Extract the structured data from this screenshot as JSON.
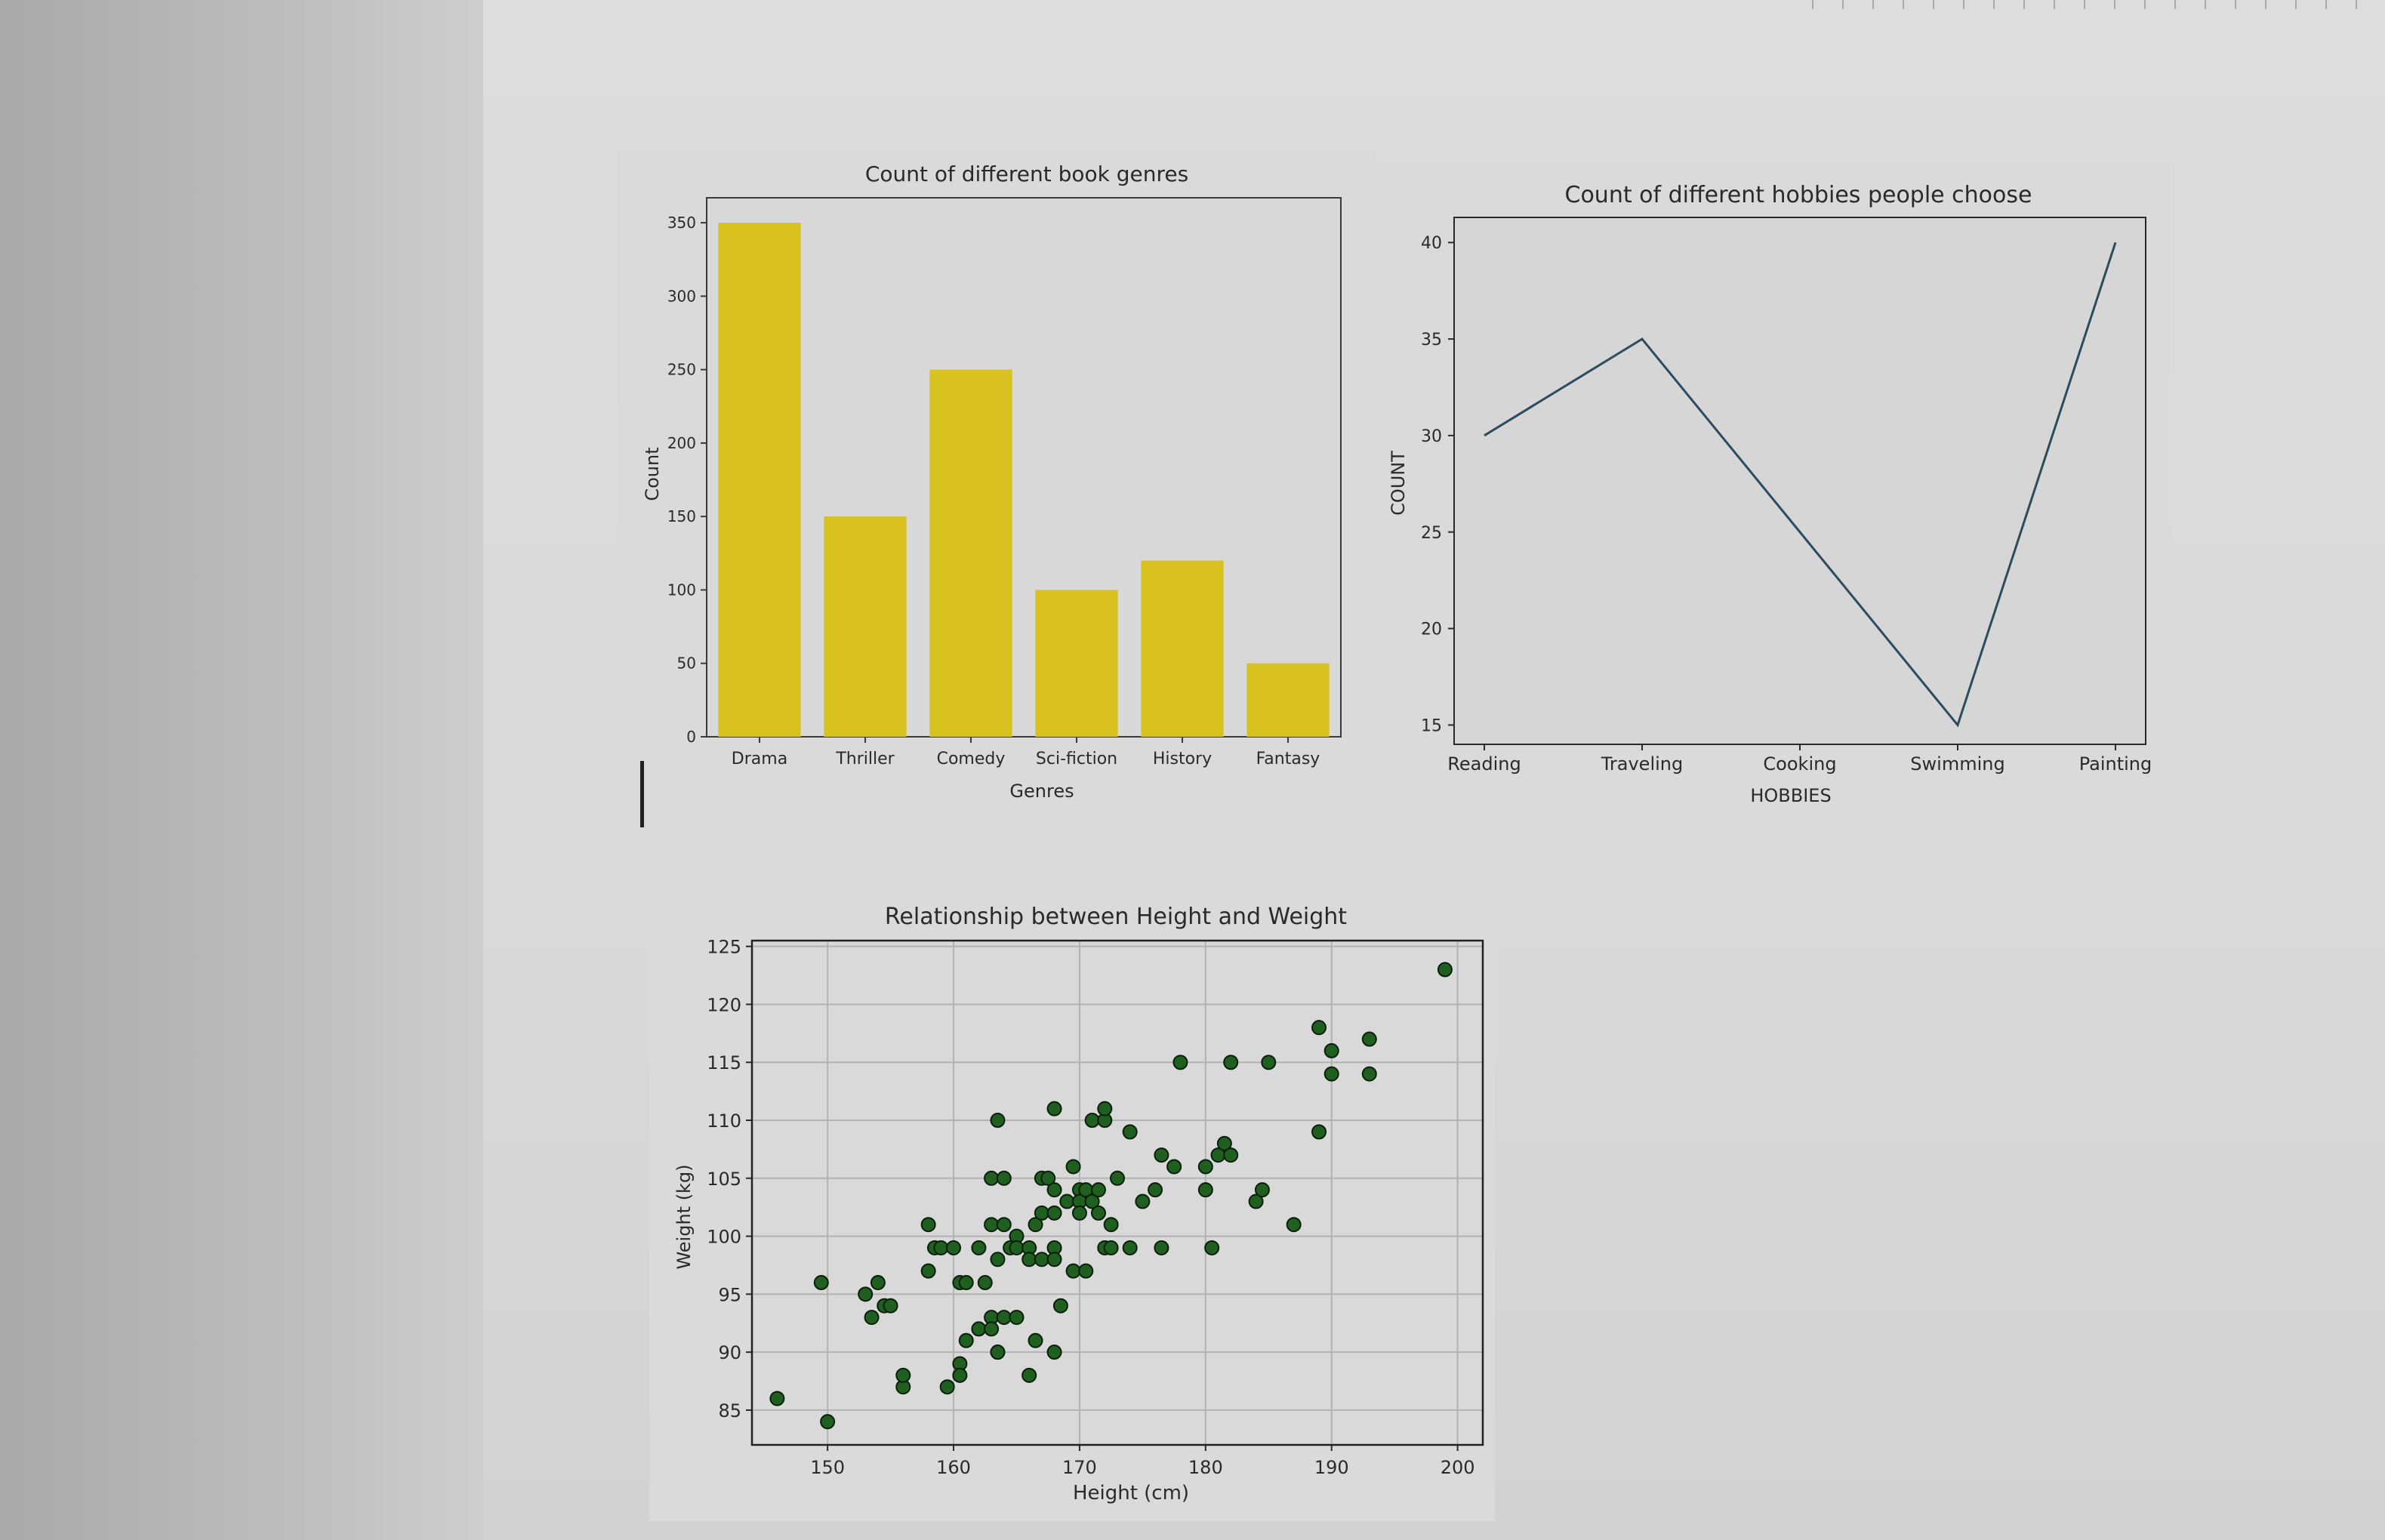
{
  "chart_data": [
    {
      "type": "bar",
      "title": "Count of different book genres",
      "xlabel": "Genres",
      "ylabel": "Count",
      "categories": [
        "Drama",
        "Thriller",
        "Comedy",
        "Sci-fiction",
        "History",
        "Fantasy"
      ],
      "values": [
        350,
        150,
        250,
        100,
        120,
        50
      ],
      "yticks": [
        0,
        50,
        100,
        150,
        200,
        250,
        300,
        350
      ],
      "ylim": [
        0,
        367
      ],
      "color": "#d9c21f",
      "grid": false
    },
    {
      "type": "line",
      "title": "Count of different hobbies people choose",
      "xlabel": "HOBBIES",
      "ylabel": "COUNT",
      "categories": [
        "Reading",
        "Traveling",
        "Cooking",
        "Swimming",
        "Painting"
      ],
      "values": [
        30,
        35,
        25,
        15,
        40
      ],
      "yticks": [
        15,
        20,
        25,
        30,
        35,
        40
      ],
      "ylim": [
        14,
        41.3
      ],
      "color": "#2d4b5f",
      "grid": false
    },
    {
      "type": "scatter",
      "title": "Relationship between Height and Weight",
      "xlabel": "Height (cm)",
      "ylabel": "Weight (kg)",
      "xticks": [
        150,
        160,
        170,
        180,
        190,
        200
      ],
      "yticks": [
        85,
        90,
        95,
        100,
        105,
        110,
        115,
        120,
        125
      ],
      "xlim": [
        144,
        202
      ],
      "ylim": [
        82,
        125.5
      ],
      "color": "#1f5f1f",
      "grid": true,
      "points": [
        [
          146,
          86
        ],
        [
          149.5,
          96
        ],
        [
          150,
          84
        ],
        [
          153,
          95
        ],
        [
          153.5,
          93
        ],
        [
          154,
          96
        ],
        [
          154.5,
          94
        ],
        [
          155,
          94
        ],
        [
          156,
          87
        ],
        [
          156,
          88
        ],
        [
          158,
          101
        ],
        [
          158,
          97
        ],
        [
          158.5,
          99
        ],
        [
          159,
          99
        ],
        [
          159.5,
          87
        ],
        [
          160,
          99
        ],
        [
          160.5,
          96
        ],
        [
          160.5,
          89
        ],
        [
          160.5,
          88
        ],
        [
          161,
          91
        ],
        [
          161,
          96
        ],
        [
          162,
          92
        ],
        [
          162,
          99
        ],
        [
          162.5,
          96
        ],
        [
          163,
          101
        ],
        [
          163,
          105
        ],
        [
          163,
          93
        ],
        [
          163,
          92
        ],
        [
          163.5,
          90
        ],
        [
          163.5,
          98
        ],
        [
          163.5,
          90
        ],
        [
          163.5,
          110
        ],
        [
          164,
          101
        ],
        [
          164,
          93
        ],
        [
          164,
          105
        ],
        [
          164.5,
          99
        ],
        [
          165,
          100
        ],
        [
          165,
          99
        ],
        [
          165,
          93
        ],
        [
          166,
          99
        ],
        [
          166,
          98
        ],
        [
          166,
          88
        ],
        [
          166.5,
          91
        ],
        [
          166.5,
          101
        ],
        [
          167,
          105
        ],
        [
          167,
          102
        ],
        [
          167,
          98
        ],
        [
          167.5,
          105
        ],
        [
          168,
          104
        ],
        [
          168,
          99
        ],
        [
          168,
          98
        ],
        [
          168,
          102
        ],
        [
          168,
          90
        ],
        [
          168,
          111
        ],
        [
          168.5,
          94
        ],
        [
          169,
          103
        ],
        [
          169.5,
          97
        ],
        [
          169.5,
          106
        ],
        [
          170,
          104
        ],
        [
          170,
          103
        ],
        [
          170,
          102
        ],
        [
          170.5,
          104
        ],
        [
          170.5,
          97
        ],
        [
          171,
          103
        ],
        [
          171,
          110
        ],
        [
          171.5,
          104
        ],
        [
          171.5,
          102
        ],
        [
          172,
          99
        ],
        [
          172,
          110
        ],
        [
          172,
          111
        ],
        [
          172.5,
          99
        ],
        [
          172.5,
          101
        ],
        [
          173,
          105
        ],
        [
          174,
          99
        ],
        [
          174,
          109
        ],
        [
          175,
          103
        ],
        [
          176,
          104
        ],
        [
          176.5,
          99
        ],
        [
          176.5,
          107
        ],
        [
          177.5,
          106
        ],
        [
          178,
          115
        ],
        [
          180,
          106
        ],
        [
          180,
          104
        ],
        [
          180.5,
          99
        ],
        [
          181,
          107
        ],
        [
          181.5,
          108
        ],
        [
          182,
          115
        ],
        [
          182,
          107
        ],
        [
          184,
          103
        ],
        [
          184.5,
          104
        ],
        [
          185,
          115
        ],
        [
          187,
          101
        ],
        [
          189,
          118
        ],
        [
          189,
          109
        ],
        [
          190,
          116
        ],
        [
          190,
          114
        ],
        [
          193,
          114
        ],
        [
          193,
          117
        ],
        [
          199,
          123
        ]
      ]
    }
  ]
}
